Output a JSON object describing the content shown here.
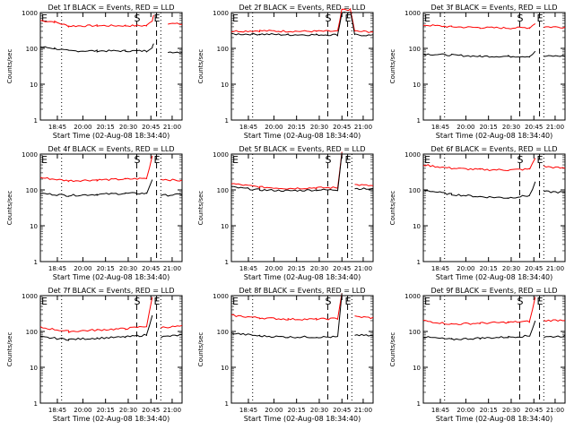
{
  "chart_data": {
    "type": "line",
    "layout": "3x3 grid of panels",
    "shared": {
      "ylabel": "Counts/sec",
      "xlabel": "Start Time (02-Aug-08 18:34:40)",
      "xticks": [
        "18:45",
        "20:00",
        "20:15",
        "20:30",
        "20:45",
        "21:00"
      ],
      "yscale": "log",
      "ylim": [
        1,
        1000
      ],
      "yticks": [
        "1",
        "10",
        "100",
        "1000"
      ],
      "event_markers": [
        {
          "label": "S",
          "time": "20:36"
        },
        {
          "label": "E",
          "time": "20:52"
        }
      ],
      "dotted_lines": [
        "18:52",
        "20:54"
      ],
      "series_colors": {
        "black": "#000000",
        "red": "#ff0000"
      }
    },
    "panels": [
      {
        "title": "Det 1f BLACK = Events, RED = LLD",
        "black": [
          [
            0,
            110
          ],
          [
            0.1,
            100
          ],
          [
            0.2,
            85
          ],
          [
            0.4,
            85
          ],
          [
            0.6,
            85
          ],
          [
            0.75,
            85
          ],
          [
            0.79,
            110
          ],
          [
            0.8,
            130
          ],
          [
            0.81,
            null
          ],
          [
            0.9,
            80
          ],
          [
            1,
            78
          ]
        ],
        "red": [
          [
            0,
            600
          ],
          [
            0.1,
            550
          ],
          [
            0.2,
            420
          ],
          [
            0.4,
            430
          ],
          [
            0.6,
            430
          ],
          [
            0.75,
            430
          ],
          [
            0.79,
            600
          ],
          [
            0.8,
            900
          ],
          [
            0.81,
            null
          ],
          [
            0.9,
            500
          ],
          [
            1,
            470
          ]
        ]
      },
      {
        "title": "Det 2f BLACK = Events, RED = LLD",
        "black": [
          [
            0,
            250
          ],
          [
            0.2,
            250
          ],
          [
            0.4,
            240
          ],
          [
            0.6,
            240
          ],
          [
            0.75,
            240
          ],
          [
            0.78,
            1000
          ],
          [
            0.84,
            1000
          ],
          [
            0.87,
            240
          ],
          [
            1,
            230
          ]
        ],
        "red": [
          [
            0,
            300
          ],
          [
            0.2,
            310
          ],
          [
            0.4,
            300
          ],
          [
            0.6,
            300
          ],
          [
            0.75,
            300
          ],
          [
            0.78,
            1200
          ],
          [
            0.84,
            1200
          ],
          [
            0.87,
            300
          ],
          [
            1,
            290
          ]
        ]
      },
      {
        "title": "Det 3f BLACK = Events, RED = LLD",
        "black": [
          [
            0,
            70
          ],
          [
            0.2,
            65
          ],
          [
            0.4,
            60
          ],
          [
            0.6,
            60
          ],
          [
            0.75,
            60
          ],
          [
            0.79,
            80
          ],
          [
            0.8,
            null
          ],
          [
            0.85,
            60
          ],
          [
            1,
            62
          ]
        ],
        "red": [
          [
            0,
            450
          ],
          [
            0.2,
            400
          ],
          [
            0.4,
            380
          ],
          [
            0.6,
            370
          ],
          [
            0.75,
            380
          ],
          [
            0.79,
            500
          ],
          [
            0.8,
            null
          ],
          [
            0.85,
            400
          ],
          [
            1,
            390
          ]
        ]
      },
      {
        "title": "Det 4f BLACK = Events, RED = LLD",
        "black": [
          [
            0,
            80
          ],
          [
            0.2,
            70
          ],
          [
            0.4,
            75
          ],
          [
            0.6,
            80
          ],
          [
            0.75,
            80
          ],
          [
            0.79,
            200
          ],
          [
            0.8,
            null
          ],
          [
            0.85,
            70
          ],
          [
            1,
            75
          ]
        ],
        "red": [
          [
            0,
            220
          ],
          [
            0.2,
            180
          ],
          [
            0.4,
            190
          ],
          [
            0.6,
            200
          ],
          [
            0.75,
            210
          ],
          [
            0.79,
            900
          ],
          [
            0.8,
            null
          ],
          [
            0.85,
            200
          ],
          [
            1,
            180
          ]
        ]
      },
      {
        "title": "Det 5f BLACK = Events, RED = LLD",
        "black": [
          [
            0,
            120
          ],
          [
            0.2,
            100
          ],
          [
            0.4,
            95
          ],
          [
            0.6,
            100
          ],
          [
            0.75,
            100
          ],
          [
            0.78,
            1100
          ],
          [
            0.82,
            null
          ],
          [
            0.87,
            110
          ],
          [
            1,
            105
          ]
        ],
        "red": [
          [
            0,
            150
          ],
          [
            0.2,
            120
          ],
          [
            0.4,
            110
          ],
          [
            0.6,
            115
          ],
          [
            0.75,
            115
          ],
          [
            0.78,
            1200
          ],
          [
            0.82,
            null
          ],
          [
            0.87,
            140
          ],
          [
            1,
            130
          ]
        ]
      },
      {
        "title": "Det 6f BLACK = Events, RED = LLD",
        "black": [
          [
            0,
            100
          ],
          [
            0.2,
            75
          ],
          [
            0.4,
            65
          ],
          [
            0.6,
            60
          ],
          [
            0.75,
            70
          ],
          [
            0.79,
            160
          ],
          [
            0.8,
            null
          ],
          [
            0.85,
            90
          ],
          [
            1,
            85
          ]
        ],
        "red": [
          [
            0,
            500
          ],
          [
            0.2,
            400
          ],
          [
            0.4,
            370
          ],
          [
            0.6,
            360
          ],
          [
            0.75,
            380
          ],
          [
            0.79,
            800
          ],
          [
            0.8,
            null
          ],
          [
            0.85,
            450
          ],
          [
            1,
            400
          ]
        ]
      },
      {
        "title": "Det 7f BLACK = Events, RED = LLD",
        "black": [
          [
            0,
            70
          ],
          [
            0.2,
            60
          ],
          [
            0.4,
            65
          ],
          [
            0.6,
            70
          ],
          [
            0.75,
            80
          ],
          [
            0.79,
            300
          ],
          [
            0.8,
            null
          ],
          [
            0.85,
            70
          ],
          [
            1,
            80
          ]
        ],
        "red": [
          [
            0,
            130
          ],
          [
            0.2,
            100
          ],
          [
            0.4,
            110
          ],
          [
            0.6,
            120
          ],
          [
            0.75,
            140
          ],
          [
            0.79,
            900
          ],
          [
            0.8,
            null
          ],
          [
            0.85,
            130
          ],
          [
            1,
            140
          ]
        ]
      },
      {
        "title": "Det 8f BLACK = Events, RED = LLD",
        "black": [
          [
            0,
            90
          ],
          [
            0.2,
            75
          ],
          [
            0.4,
            70
          ],
          [
            0.6,
            70
          ],
          [
            0.75,
            70
          ],
          [
            0.78,
            1100
          ],
          [
            0.82,
            null
          ],
          [
            0.87,
            80
          ],
          [
            1,
            75
          ]
        ],
        "red": [
          [
            0,
            280
          ],
          [
            0.2,
            240
          ],
          [
            0.4,
            220
          ],
          [
            0.6,
            220
          ],
          [
            0.75,
            230
          ],
          [
            0.78,
            1200
          ],
          [
            0.82,
            null
          ],
          [
            0.87,
            260
          ],
          [
            1,
            240
          ]
        ]
      },
      {
        "title": "Det 9f BLACK = Events, RED = LLD",
        "black": [
          [
            0,
            70
          ],
          [
            0.2,
            60
          ],
          [
            0.4,
            65
          ],
          [
            0.6,
            70
          ],
          [
            0.75,
            75
          ],
          [
            0.79,
            200
          ],
          [
            0.8,
            null
          ],
          [
            0.85,
            70
          ],
          [
            1,
            75
          ]
        ],
        "red": [
          [
            0,
            200
          ],
          [
            0.2,
            160
          ],
          [
            0.4,
            170
          ],
          [
            0.6,
            180
          ],
          [
            0.75,
            190
          ],
          [
            0.79,
            900
          ],
          [
            0.8,
            null
          ],
          [
            0.85,
            200
          ],
          [
            1,
            210
          ]
        ]
      }
    ]
  }
}
